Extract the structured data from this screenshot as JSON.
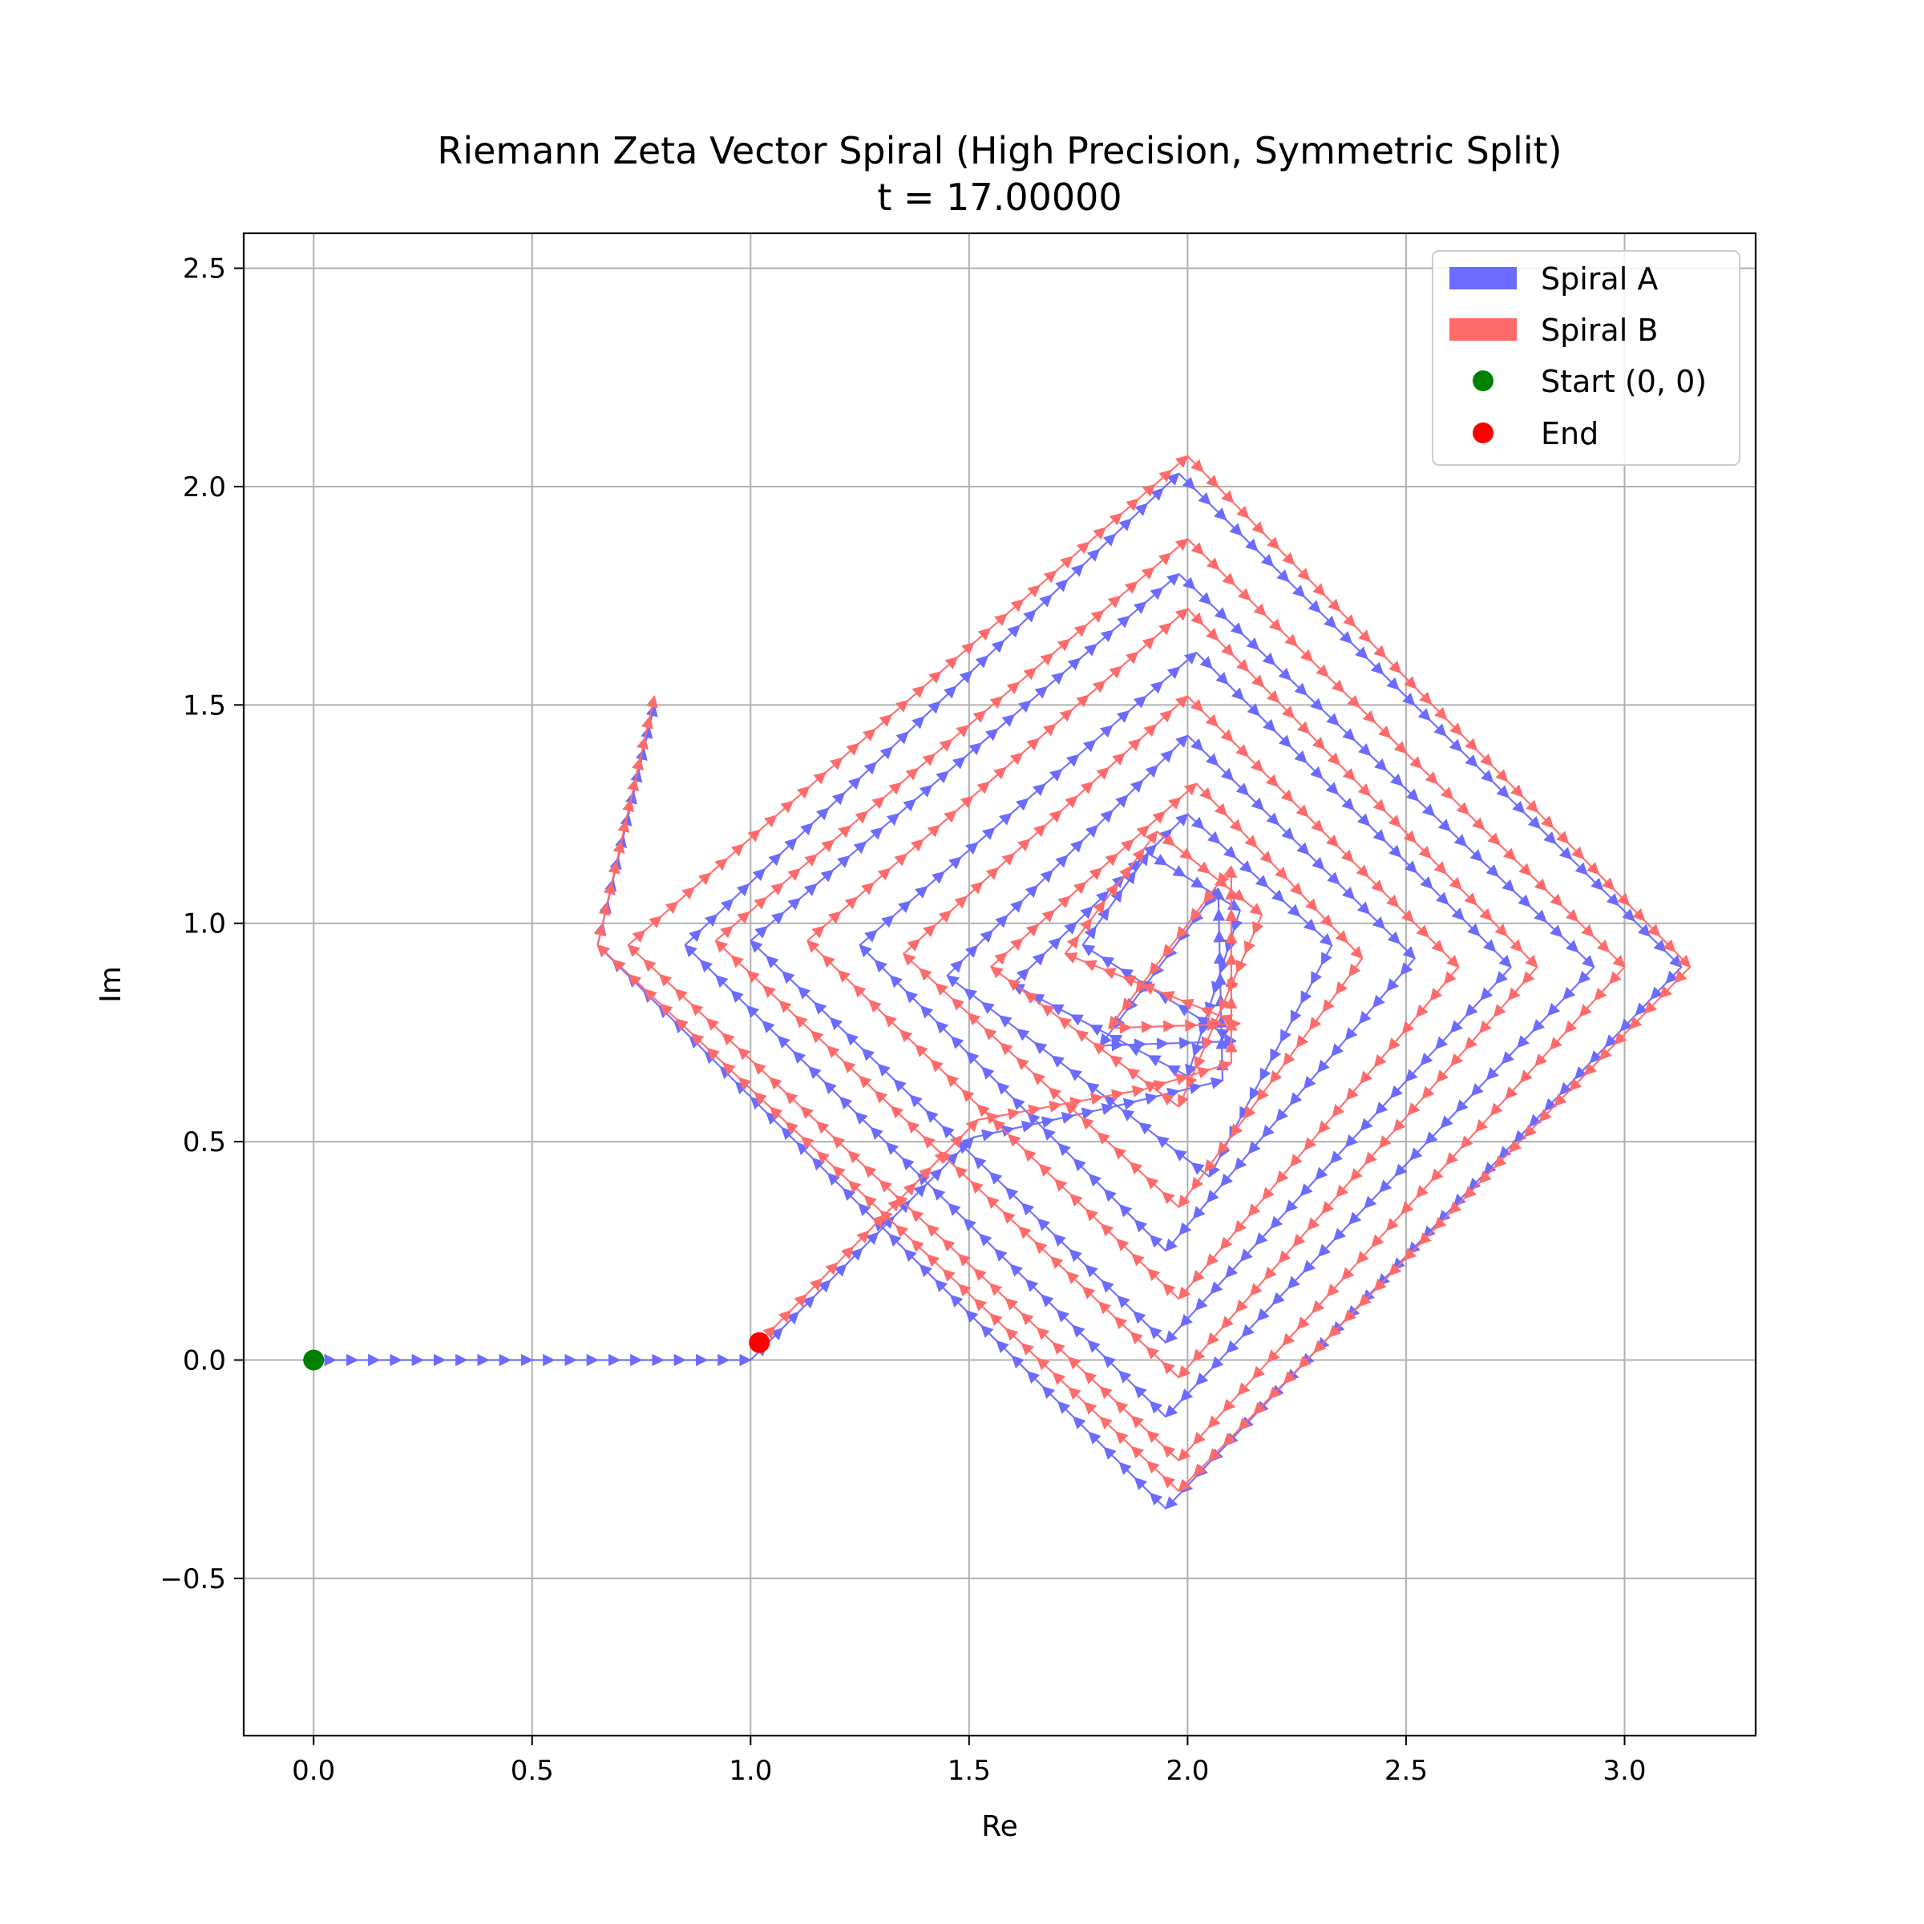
{
  "chart_data": {
    "type": "line",
    "title": "Riemann Zeta Vector Spiral (High Precision, Symmetric Split)",
    "subtitle": "t = 17.00000",
    "xlabel": "Re",
    "ylabel": "Im",
    "xlim": [
      -0.16,
      3.3
    ],
    "ylim": [
      -0.86,
      2.58
    ],
    "xticks": [
      0.0,
      0.5,
      1.0,
      1.5,
      2.0,
      2.5,
      3.0
    ],
    "xtick_labels": [
      "0.0",
      "0.5",
      "1.0",
      "1.5",
      "2.0",
      "2.5",
      "3.0"
    ],
    "yticks": [
      -0.5,
      0.0,
      0.5,
      1.0,
      1.5,
      2.0,
      2.5
    ],
    "ytick_labels": [
      "−0.5",
      "0.0",
      "0.5",
      "1.0",
      "1.5",
      "2.0",
      "2.5"
    ],
    "grid": true,
    "legend_position": "top-right",
    "series": [
      {
        "name": "Spiral A",
        "color": "#6b6bff",
        "style": "arrows",
        "points": [
          [
            0.0,
            0.0
          ],
          [
            1.0,
            0.0
          ],
          [
            1.51,
            0.51
          ],
          [
            1.83,
            0.58
          ],
          [
            2.08,
            0.64
          ],
          [
            2.07,
            1.08
          ],
          [
            1.8,
            0.72
          ],
          [
            2.11,
            0.73
          ],
          [
            1.76,
            0.95
          ],
          [
            1.91,
            1.16
          ],
          [
            2.12,
            1.03
          ],
          [
            2.0,
            0.65
          ],
          [
            1.6,
            0.86
          ],
          [
            2.0,
            1.25
          ],
          [
            2.33,
            0.95
          ],
          [
            2.05,
            0.42
          ],
          [
            1.45,
            0.88
          ],
          [
            2.0,
            1.43
          ],
          [
            2.52,
            0.92
          ],
          [
            1.95,
            0.25
          ],
          [
            1.25,
            0.95
          ],
          [
            2.02,
            1.62
          ],
          [
            2.74,
            0.9
          ],
          [
            1.95,
            0.04
          ],
          [
            1.0,
            0.96
          ],
          [
            1.98,
            1.8
          ],
          [
            2.93,
            0.9
          ],
          [
            1.95,
            -0.13
          ],
          [
            0.85,
            0.95
          ],
          [
            1.98,
            2.03
          ],
          [
            3.13,
            0.9
          ],
          [
            1.95,
            -0.34
          ],
          [
            0.65,
            0.95
          ],
          [
            0.78,
            1.5
          ]
        ]
      },
      {
        "name": "Spiral B",
        "color": "#ff6b6b",
        "style": "arrows",
        "points": [
          [
            1.02,
            0.04
          ],
          [
            1.52,
            0.55
          ],
          [
            1.9,
            0.62
          ],
          [
            2.1,
            0.68
          ],
          [
            2.1,
            1.13
          ],
          [
            1.82,
            0.76
          ],
          [
            2.12,
            0.77
          ],
          [
            1.72,
            0.93
          ],
          [
            1.93,
            1.21
          ],
          [
            2.17,
            1.02
          ],
          [
            1.98,
            0.58
          ],
          [
            1.55,
            0.9
          ],
          [
            2.02,
            1.32
          ],
          [
            2.4,
            0.92
          ],
          [
            1.98,
            0.35
          ],
          [
            1.35,
            0.93
          ],
          [
            2.0,
            1.52
          ],
          [
            2.62,
            0.9
          ],
          [
            1.98,
            0.14
          ],
          [
            1.13,
            0.96
          ],
          [
            2.0,
            1.72
          ],
          [
            2.8,
            0.9
          ],
          [
            1.98,
            -0.04
          ],
          [
            0.92,
            0.96
          ],
          [
            2.0,
            1.88
          ],
          [
            3.0,
            0.9
          ],
          [
            1.98,
            -0.23
          ],
          [
            0.72,
            0.95
          ],
          [
            2.0,
            2.07
          ],
          [
            3.15,
            0.9
          ],
          [
            1.98,
            -0.3
          ],
          [
            0.65,
            0.95
          ],
          [
            0.78,
            1.52
          ]
        ]
      },
      {
        "name": "Start (0, 0)",
        "type": "scatter",
        "color": "#008000",
        "points": [
          [
            0.0,
            0.0
          ]
        ]
      },
      {
        "name": "End",
        "type": "scatter",
        "color": "#ff0000",
        "points": [
          [
            1.02,
            0.04
          ]
        ]
      }
    ]
  }
}
